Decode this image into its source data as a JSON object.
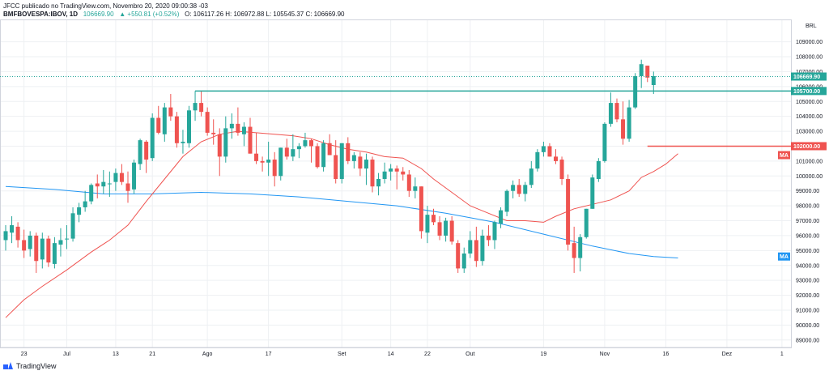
{
  "header": {
    "line1": "JFCC publicado no TradingView.com, Novembro 20, 2020 09:00:38 -03",
    "symbol": "BMFBOVESPA:IBOV, 1D",
    "last": "106669.90",
    "change": "▲ +550.81 (+0.52%)",
    "ohlc": "O: 106117.26  H: 106972.88  L: 105545.37  C: 106669.90"
  },
  "footer": {
    "brand": "TradingView"
  },
  "chart_data": {
    "type": "candlestick",
    "currency_label": "BRL",
    "ylim": [
      88500,
      110500
    ],
    "y_ticks": [
      "109000.00",
      "108000.00",
      "107000.00",
      "106000.00",
      "105000.00",
      "104000.00",
      "103000.00",
      "102000.00",
      "101000.00",
      "100000.00",
      "99000.00",
      "98000.00",
      "97000.00",
      "96000.00",
      "95000.00",
      "94000.00",
      "93000.00",
      "92000.00",
      "91000.00",
      "90000.00",
      "89000.00"
    ],
    "x_ticks": [
      {
        "label": "23",
        "i": 3
      },
      {
        "label": "Jul",
        "i": 10
      },
      {
        "label": "13",
        "i": 18
      },
      {
        "label": "21",
        "i": 24
      },
      {
        "label": "Ago",
        "i": 33
      },
      {
        "label": "17",
        "i": 43
      },
      {
        "label": "Set",
        "i": 55
      },
      {
        "label": "14",
        "i": 63
      },
      {
        "label": "22",
        "i": 69
      },
      {
        "label": "Out",
        "i": 76
      },
      {
        "label": "19",
        "i": 88
      },
      {
        "label": "Nov",
        "i": 98
      },
      {
        "label": "16",
        "i": 108
      },
      {
        "label": "Dez",
        "i": 118
      },
      {
        "label": "1",
        "i": 127
      }
    ],
    "candles": [
      [
        95700,
        96700,
        95000,
        96300
      ],
      [
        96200,
        97300,
        95500,
        96700
      ],
      [
        96600,
        96900,
        95200,
        95700
      ],
      [
        95700,
        96400,
        94500,
        95000
      ],
      [
        95100,
        96300,
        94600,
        96000
      ],
      [
        96000,
        96200,
        93500,
        94300
      ],
      [
        94400,
        96200,
        93800,
        95800
      ],
      [
        95800,
        96000,
        93900,
        94200
      ],
      [
        94100,
        95900,
        93800,
        95500
      ],
      [
        95400,
        96500,
        94600,
        95700
      ],
      [
        95800,
        96700,
        95100,
        95800
      ],
      [
        95800,
        97900,
        95600,
        97500
      ],
      [
        97400,
        98200,
        96900,
        97900
      ],
      [
        97900,
        99000,
        97600,
        98300
      ],
      [
        98300,
        99500,
        98100,
        99400
      ],
      [
        99500,
        100100,
        98500,
        99300
      ],
      [
        99300,
        100400,
        98800,
        99600
      ],
      [
        99500,
        100300,
        98600,
        99500
      ],
      [
        99600,
        100500,
        99000,
        100200
      ],
      [
        100200,
        100800,
        99400,
        99600
      ],
      [
        99500,
        100300,
        98200,
        99000
      ],
      [
        99100,
        101100,
        98800,
        100900
      ],
      [
        100800,
        102500,
        100400,
        102400
      ],
      [
        102300,
        102400,
        100200,
        101100
      ],
      [
        101200,
        104200,
        101000,
        103900
      ],
      [
        103900,
        104700,
        102800,
        102900
      ],
      [
        102800,
        104900,
        102300,
        104600
      ],
      [
        104600,
        105500,
        103700,
        104000
      ],
      [
        104000,
        104300,
        101900,
        102200
      ],
      [
        102200,
        103100,
        101500,
        102300
      ],
      [
        102200,
        104700,
        101900,
        104400
      ],
      [
        104400,
        105700,
        103700,
        104900
      ],
      [
        104900,
        105700,
        104000,
        104300
      ],
      [
        104300,
        104600,
        102700,
        102900
      ],
      [
        102900,
        103800,
        102100,
        102800
      ],
      [
        102800,
        103200,
        100000,
        101300
      ],
      [
        101300,
        104000,
        100900,
        103200
      ],
      [
        103200,
        104200,
        102500,
        103500
      ],
      [
        103500,
        104600,
        102700,
        102900
      ],
      [
        102800,
        103600,
        102000,
        103300
      ],
      [
        103300,
        103900,
        101500,
        101500
      ],
      [
        101500,
        102900,
        100800,
        101000
      ],
      [
        101000,
        101300,
        100300,
        100900
      ],
      [
        100900,
        102300,
        100000,
        101100
      ],
      [
        101100,
        101600,
        99300,
        100000
      ],
      [
        100000,
        101900,
        99700,
        101900
      ],
      [
        101900,
        102500,
        101100,
        101300
      ],
      [
        101300,
        102800,
        101000,
        101800
      ],
      [
        101800,
        102200,
        101200,
        102000
      ],
      [
        102000,
        102900,
        101900,
        102400
      ],
      [
        102400,
        102500,
        100900,
        102000
      ],
      [
        102000,
        102200,
        100500,
        100600
      ],
      [
        100600,
        102400,
        100300,
        102200
      ],
      [
        102200,
        102800,
        101400,
        101400
      ],
      [
        101400,
        102400,
        99500,
        99800
      ],
      [
        99800,
        102200,
        99500,
        102200
      ],
      [
        102200,
        102600,
        100800,
        101000
      ],
      [
        101000,
        101600,
        100500,
        101400
      ],
      [
        101300,
        101600,
        100000,
        100500
      ],
      [
        100500,
        101500,
        99400,
        101100
      ],
      [
        101100,
        101300,
        98900,
        99300
      ],
      [
        99300,
        100200,
        98700,
        99800
      ],
      [
        99800,
        100900,
        99500,
        100300
      ],
      [
        100300,
        100800,
        99700,
        100500
      ],
      [
        100500,
        100700,
        99100,
        100300
      ],
      [
        100300,
        100600,
        99700,
        100100
      ],
      [
        100100,
        100400,
        98600,
        99000
      ],
      [
        99000,
        99900,
        98500,
        99300
      ],
      [
        99300,
        99300,
        95800,
        96300
      ],
      [
        96200,
        98000,
        95500,
        97400
      ],
      [
        97400,
        97800,
        96700,
        96900
      ],
      [
        96900,
        97300,
        95700,
        96000
      ],
      [
        96000,
        97200,
        95600,
        97000
      ],
      [
        97000,
        97300,
        95400,
        95600
      ],
      [
        95500,
        95700,
        93500,
        93800
      ],
      [
        93800,
        95200,
        93500,
        94800
      ],
      [
        94800,
        96300,
        94500,
        95700
      ],
      [
        95700,
        96600,
        93900,
        94300
      ],
      [
        94300,
        96400,
        94000,
        96000
      ],
      [
        96000,
        96700,
        95300,
        95700
      ],
      [
        95700,
        97000,
        95100,
        96900
      ],
      [
        96800,
        97900,
        96500,
        97700
      ],
      [
        97600,
        99100,
        97300,
        99000
      ],
      [
        99000,
        99700,
        98500,
        99400
      ],
      [
        99400,
        99800,
        98600,
        98800
      ],
      [
        98800,
        99600,
        98300,
        99400
      ],
      [
        99400,
        101000,
        99200,
        100500
      ],
      [
        100500,
        101800,
        100300,
        101600
      ],
      [
        101600,
        102300,
        101300,
        102000
      ],
      [
        102000,
        102200,
        101300,
        101300
      ],
      [
        101300,
        101800,
        100800,
        101000
      ],
      [
        101100,
        101300,
        99400,
        99800
      ],
      [
        99800,
        100100,
        95000,
        95400
      ],
      [
        95500,
        96600,
        93500,
        94500
      ],
      [
        94500,
        96100,
        93600,
        95900
      ],
      [
        95900,
        97800,
        95800,
        97800
      ],
      [
        97800,
        100100,
        97800,
        99900
      ],
      [
        99800,
        101200,
        99600,
        101000
      ],
      [
        101000,
        103600,
        100900,
        103500
      ],
      [
        103500,
        105600,
        103300,
        104900
      ],
      [
        104900,
        105200,
        103600,
        103800
      ],
      [
        103800,
        105000,
        102100,
        102500
      ],
      [
        102500,
        105100,
        102300,
        104600
      ],
      [
        104600,
        106900,
        104500,
        106700
      ],
      [
        106700,
        107800,
        105900,
        107500
      ],
      [
        107400,
        107400,
        106300,
        106600
      ],
      [
        106100,
        107000,
        105500,
        106700
      ]
    ],
    "series": [
      {
        "name": "MA",
        "color": "#ef5350"
      },
      {
        "name": "MA",
        "color": "#2196f3"
      }
    ],
    "ma_short": [
      [
        0,
        90500
      ],
      [
        3,
        91700
      ],
      [
        6,
        92600
      ],
      [
        10,
        93700
      ],
      [
        14,
        94900
      ],
      [
        17,
        95700
      ],
      [
        20,
        96700
      ],
      [
        23,
        98300
      ],
      [
        26,
        99800
      ],
      [
        29,
        101300
      ],
      [
        32,
        102300
      ],
      [
        35,
        102800
      ],
      [
        38,
        103000
      ],
      [
        41,
        102900
      ],
      [
        44,
        102800
      ],
      [
        47,
        102700
      ],
      [
        50,
        102500
      ],
      [
        53,
        102100
      ],
      [
        56,
        101800
      ],
      [
        59,
        101600
      ],
      [
        62,
        101300
      ],
      [
        65,
        101200
      ],
      [
        68,
        100500
      ],
      [
        70,
        99800
      ],
      [
        73,
        98900
      ],
      [
        76,
        98000
      ],
      [
        79,
        97500
      ],
      [
        82,
        97000
      ],
      [
        85,
        97000
      ],
      [
        88,
        96900
      ],
      [
        90,
        97300
      ],
      [
        93,
        97800
      ],
      [
        96,
        98100
      ],
      [
        99,
        98400
      ],
      [
        102,
        99000
      ],
      [
        104,
        99900
      ],
      [
        106,
        100300
      ],
      [
        108,
        100800
      ],
      [
        110,
        101500
      ]
    ],
    "ma_long": [
      [
        0,
        99300
      ],
      [
        8,
        99100
      ],
      [
        16,
        98800
      ],
      [
        24,
        98800
      ],
      [
        32,
        98900
      ],
      [
        40,
        98800
      ],
      [
        48,
        98600
      ],
      [
        56,
        98300
      ],
      [
        64,
        98000
      ],
      [
        72,
        97500
      ],
      [
        80,
        96900
      ],
      [
        88,
        96100
      ],
      [
        96,
        95300
      ],
      [
        102,
        94800
      ],
      [
        106,
        94600
      ],
      [
        110,
        94500
      ]
    ],
    "price_lines": [
      {
        "label": "106669.90",
        "value": 106669.9,
        "color": "#26a69a",
        "style": "dotted"
      },
      {
        "label": "105700.00",
        "value": 105700,
        "color": "#26a69a",
        "style": "solid",
        "from_i": 31
      },
      {
        "label": "102000.00",
        "value": 102000,
        "color": "#ef5350",
        "style": "solid",
        "from_i": 105
      }
    ],
    "ma_tags": [
      {
        "label": "MA",
        "value": 101400,
        "color": "#ef5350"
      },
      {
        "label": "MA",
        "value": 94600,
        "color": "#2196f3"
      }
    ],
    "colors": {
      "up": "#26a69a",
      "down": "#ef5350",
      "grid": "#eef0f3"
    }
  }
}
